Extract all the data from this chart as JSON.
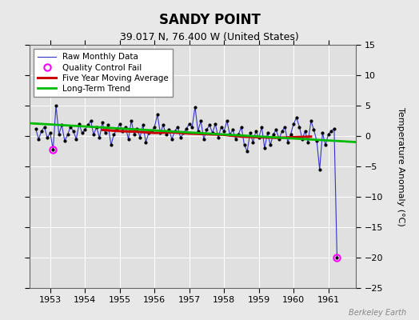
{
  "title": "SANDY POINT",
  "subtitle": "39.017 N, 76.400 W (United States)",
  "ylabel": "Temperature Anomaly (°C)",
  "watermark": "Berkeley Earth",
  "xlim": [
    1952.4,
    1961.8
  ],
  "ylim": [
    -25,
    15
  ],
  "yticks": [
    -25,
    -20,
    -15,
    -10,
    -5,
    0,
    5,
    10,
    15
  ],
  "xticks": [
    1953,
    1954,
    1955,
    1956,
    1957,
    1958,
    1959,
    1960,
    1961
  ],
  "bg_color": "#e8e8e8",
  "plot_bg_color": "#e0e0e0",
  "raw_color": "#3333cc",
  "dot_color": "#000000",
  "ma_color": "#cc0000",
  "trend_color": "#00bb00",
  "qc_color": "#ff00ff",
  "raw_data": {
    "x": [
      1952.583,
      1952.667,
      1952.75,
      1952.833,
      1952.917,
      1953.0,
      1953.083,
      1953.167,
      1953.25,
      1953.333,
      1953.417,
      1953.5,
      1953.583,
      1953.667,
      1953.75,
      1953.833,
      1953.917,
      1954.0,
      1954.083,
      1954.167,
      1954.25,
      1954.333,
      1954.417,
      1954.5,
      1954.583,
      1954.667,
      1954.75,
      1954.833,
      1954.917,
      1955.0,
      1955.083,
      1955.167,
      1955.25,
      1955.333,
      1955.417,
      1955.5,
      1955.583,
      1955.667,
      1955.75,
      1955.833,
      1955.917,
      1956.0,
      1956.083,
      1956.167,
      1956.25,
      1956.333,
      1956.417,
      1956.5,
      1956.583,
      1956.667,
      1956.75,
      1956.833,
      1956.917,
      1957.0,
      1957.083,
      1957.167,
      1957.25,
      1957.333,
      1957.417,
      1957.5,
      1957.583,
      1957.667,
      1957.75,
      1957.833,
      1957.917,
      1958.0,
      1958.083,
      1958.167,
      1958.25,
      1958.333,
      1958.417,
      1958.5,
      1958.583,
      1958.667,
      1958.75,
      1958.833,
      1958.917,
      1959.0,
      1959.083,
      1959.167,
      1959.25,
      1959.333,
      1959.417,
      1959.5,
      1959.583,
      1959.667,
      1959.75,
      1959.833,
      1959.917,
      1960.0,
      1960.083,
      1960.167,
      1960.25,
      1960.333,
      1960.417,
      1960.5,
      1960.583,
      1960.667,
      1960.75,
      1960.833,
      1960.917,
      1961.0,
      1961.083,
      1961.167,
      1961.25
    ],
    "y": [
      1.2,
      -0.5,
      0.8,
      1.5,
      -0.3,
      0.5,
      -2.2,
      5.0,
      0.3,
      1.8,
      -0.8,
      0.2,
      1.5,
      0.8,
      -0.5,
      2.0,
      0.5,
      1.0,
      1.8,
      2.5,
      0.2,
      1.5,
      -0.3,
      2.2,
      0.5,
      1.8,
      -1.5,
      0.3,
      1.0,
      2.0,
      0.8,
      1.5,
      -0.5,
      2.5,
      0.3,
      1.2,
      -0.2,
      1.8,
      -1.0,
      0.5,
      0.8,
      1.5,
      3.5,
      0.5,
      1.8,
      0.2,
      1.0,
      -0.5,
      0.8,
      1.5,
      -0.3,
      0.5,
      1.2,
      2.0,
      1.5,
      4.8,
      0.8,
      2.5,
      -0.5,
      1.0,
      1.8,
      0.5,
      2.0,
      -0.3,
      1.5,
      0.8,
      2.5,
      0.2,
      1.0,
      -0.5,
      0.3,
      1.5,
      -1.5,
      -2.5,
      0.5,
      -1.0,
      0.8,
      -0.3,
      1.5,
      -2.0,
      0.5,
      -1.5,
      0.3,
      1.0,
      -0.5,
      0.8,
      1.5,
      -1.0,
      0.3,
      2.0,
      3.0,
      1.5,
      -0.5,
      0.8,
      -1.0,
      2.5,
      1.0,
      -0.8,
      -5.5,
      0.5,
      -1.5,
      0.3,
      0.8,
      1.2,
      -20.0
    ]
  },
  "qc_fail_points": {
    "x": [
      1953.083,
      1961.25
    ],
    "y": [
      -2.2,
      -20.0
    ]
  },
  "moving_avg": {
    "x": [
      1954.5,
      1955.0,
      1955.5,
      1956.0,
      1956.5,
      1957.0,
      1957.5,
      1958.0,
      1958.5,
      1959.0,
      1959.5,
      1960.0,
      1960.5
    ],
    "y": [
      1.0,
      0.8,
      0.7,
      0.5,
      0.6,
      0.4,
      0.3,
      0.2,
      -0.1,
      -0.2,
      -0.3,
      -0.2,
      -0.1
    ]
  },
  "trend": {
    "x": [
      1952.4,
      1961.8
    ],
    "y": [
      2.1,
      -1.0
    ]
  }
}
